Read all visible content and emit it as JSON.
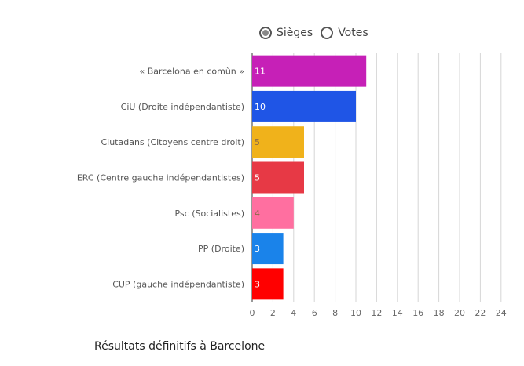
{
  "toggle": {
    "options": [
      {
        "label": "Sièges",
        "selected": true
      },
      {
        "label": "Votes",
        "selected": false
      }
    ]
  },
  "chart_data": {
    "type": "bar",
    "orientation": "horizontal",
    "categories": [
      "« Barcelona en comùn »",
      "CiU (Droite indépendantiste)",
      "Ciutadans (Citoyens centre droit)",
      "ERC (Centre gauche indépendantistes)",
      "Psc (Socialistes)",
      "PP (Droite)",
      "CUP (gauche indépendantiste)"
    ],
    "values": [
      11,
      10,
      5,
      5,
      4,
      3,
      3
    ],
    "colors": [
      "#c620b7",
      "#1f55e6",
      "#f0b21b",
      "#e73945",
      "#ff6fa0",
      "#1a83ea",
      "#ff0000"
    ],
    "xlim": [
      0,
      24
    ],
    "xticks": [
      0,
      2,
      4,
      6,
      8,
      10,
      12,
      14,
      16,
      18,
      20,
      22,
      24
    ],
    "grid": true,
    "caption": "Résultats définitifs à Barcelone"
  }
}
